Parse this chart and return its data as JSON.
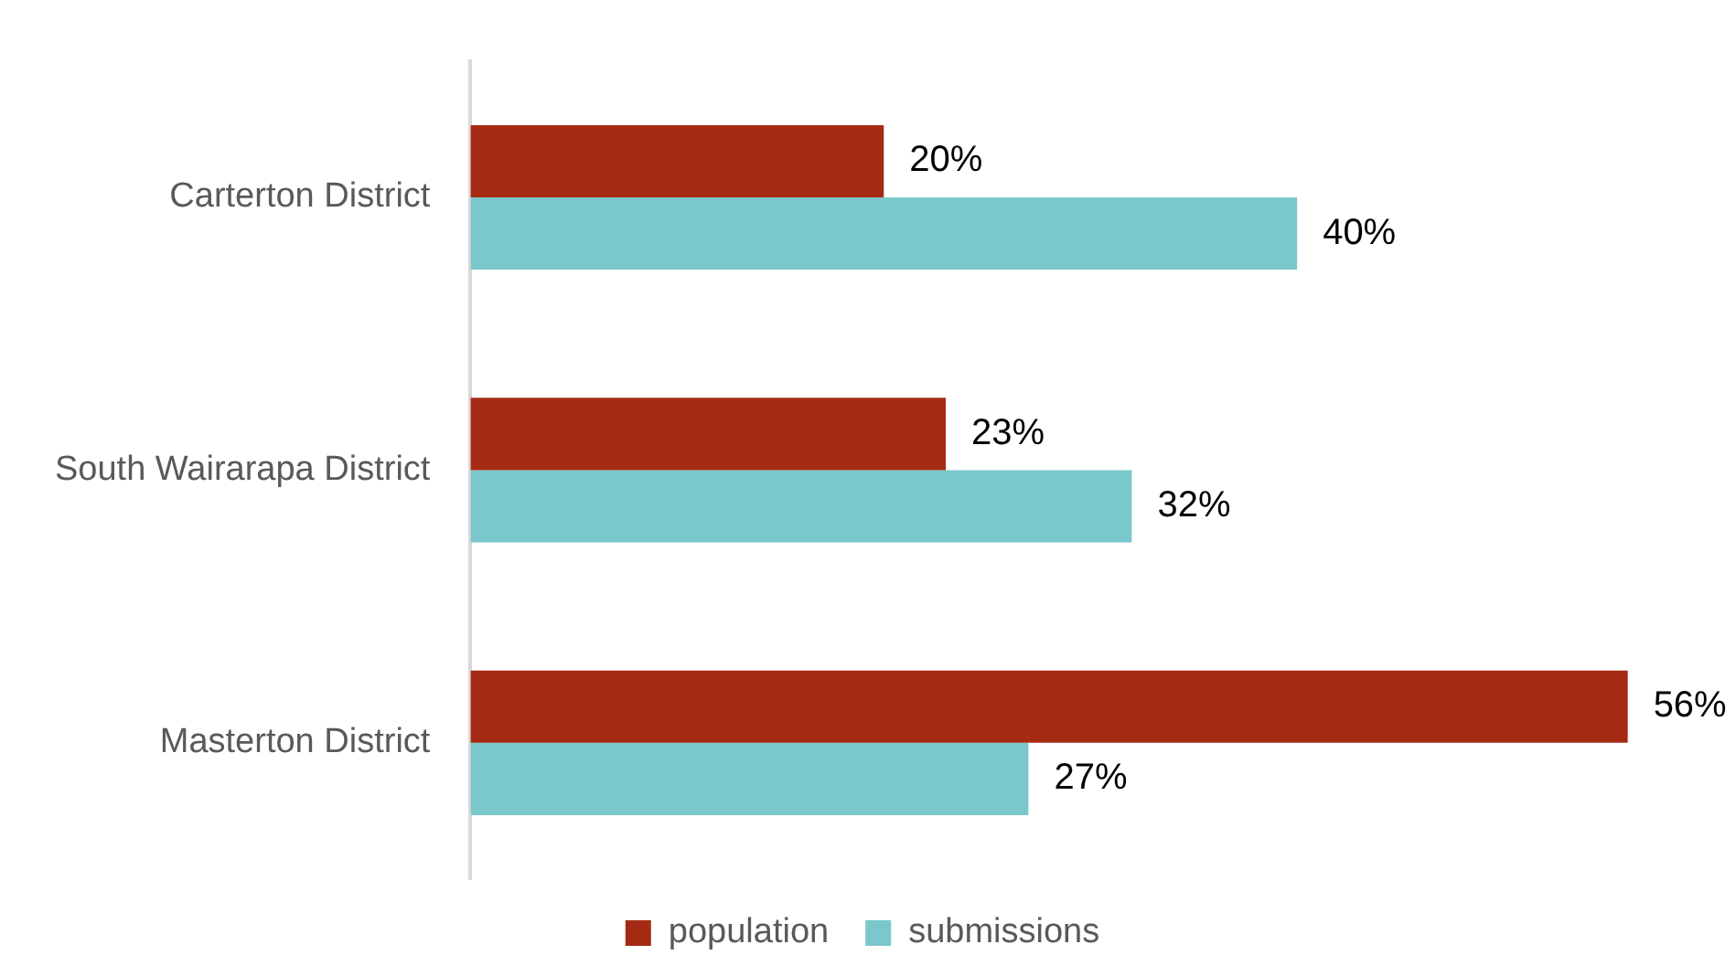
{
  "chart_data": {
    "type": "bar",
    "orientation": "horizontal",
    "categories": [
      "Carterton District",
      "South Wairarapa District",
      "Masterton District"
    ],
    "series": [
      {
        "name": "population",
        "color": "#a52a14",
        "values": [
          20,
          23,
          56
        ],
        "value_labels": [
          "20%",
          "23%",
          "56%"
        ]
      },
      {
        "name": "submissions",
        "color": "#7ac8cc",
        "values": [
          40,
          32,
          27
        ],
        "value_labels": [
          "40%",
          "32%",
          "27%"
        ]
      }
    ],
    "tick_labels": "y",
    "grid": false,
    "legend": "bottom"
  }
}
